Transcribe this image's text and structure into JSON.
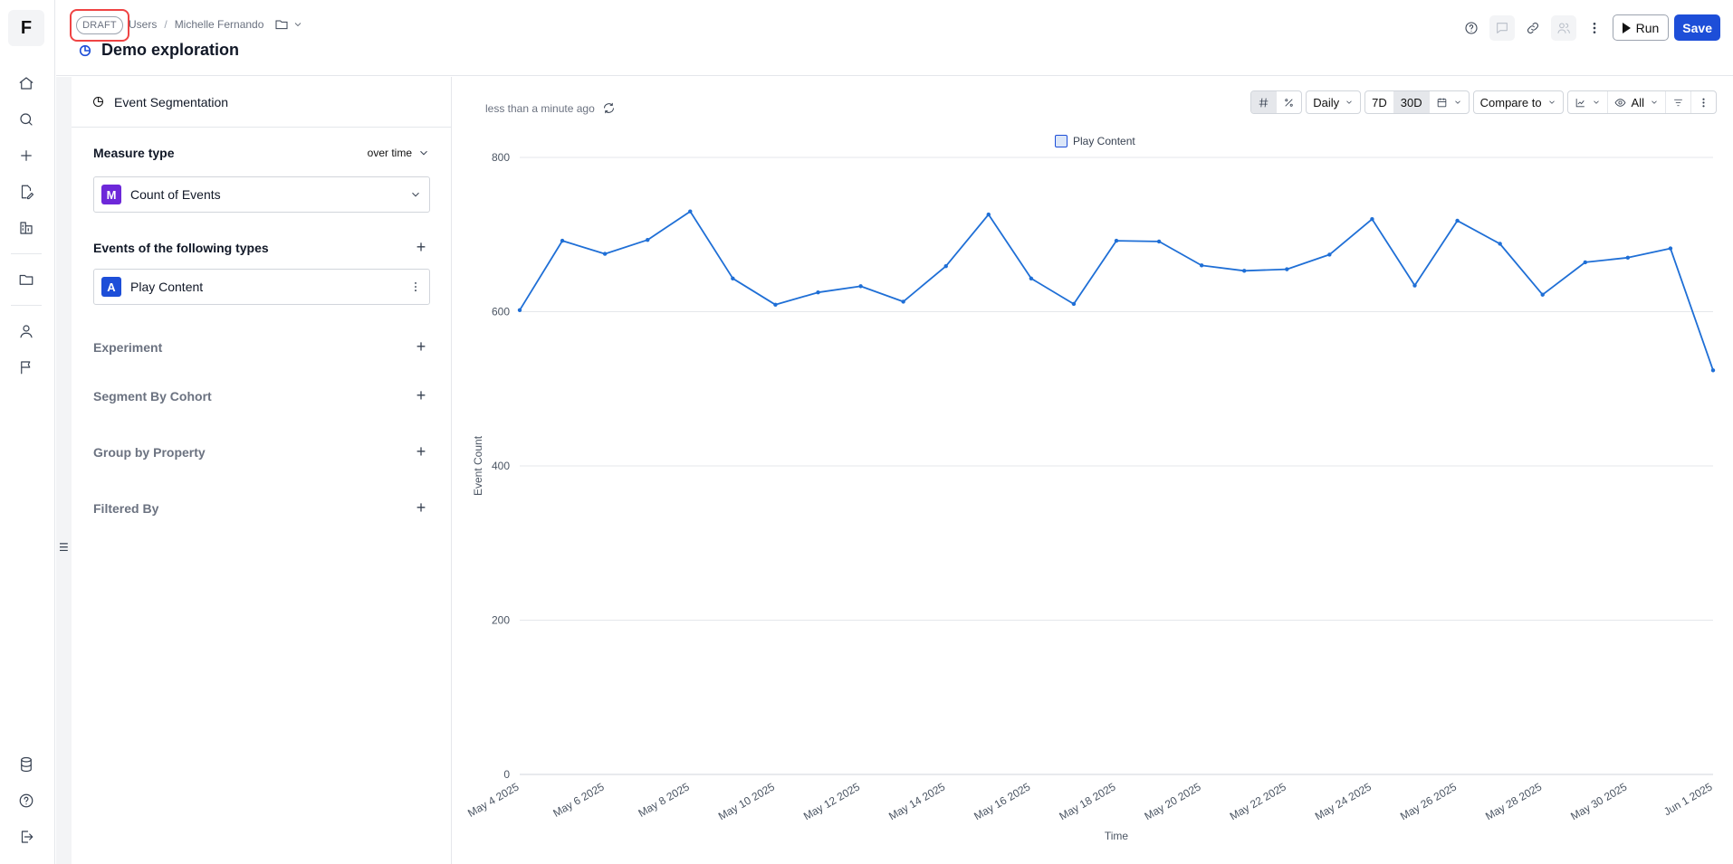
{
  "rail": {
    "logo": "F",
    "icons": [
      "home-icon",
      "search-icon",
      "plus-icon",
      "file-edit-icon",
      "report-icon",
      "folder-icon",
      "user-icon",
      "flag-icon",
      "database-icon",
      "help-icon",
      "logout-icon"
    ]
  },
  "header": {
    "draft_label": "DRAFT",
    "breadcrumb_users": "Users",
    "breadcrumb_sep": "/",
    "breadcrumb_owner": "Michelle Fernando",
    "title": "Demo exploration",
    "run_label": "Run",
    "save_label": "Save"
  },
  "panel": {
    "heading": "Event Segmentation",
    "measure_title": "Measure type",
    "measure_mode": "over time",
    "measure_badge": "M",
    "measure_value": "Count of Events",
    "events_title": "Events of the following types",
    "event_badge": "A",
    "event_value": "Play Content",
    "experiment": "Experiment",
    "segment": "Segment By Cohort",
    "group": "Group by Property",
    "filtered": "Filtered By"
  },
  "toolbar": {
    "updated": "less than a minute ago",
    "granularity": "Daily",
    "range_7d": "7D",
    "range_30d": "30D",
    "compare": "Compare to",
    "visibility": "All"
  },
  "colors": {
    "accent": "#1d4ed8",
    "line": "#1f6fd6",
    "highlight": "#ef4444"
  },
  "chart_data": {
    "type": "line",
    "title": "",
    "xlabel": "Time",
    "ylabel": "Event Count",
    "ylim": [
      0,
      800
    ],
    "yticks": [
      0,
      200,
      400,
      600,
      800
    ],
    "grid": true,
    "legend_position": "top-center",
    "x": [
      "May 4 2025",
      "May 5 2025",
      "May 6 2025",
      "May 7 2025",
      "May 8 2025",
      "May 9 2025",
      "May 10 2025",
      "May 11 2025",
      "May 12 2025",
      "May 13 2025",
      "May 14 2025",
      "May 15 2025",
      "May 16 2025",
      "May 17 2025",
      "May 18 2025",
      "May 19 2025",
      "May 20 2025",
      "May 21 2025",
      "May 22 2025",
      "May 23 2025",
      "May 24 2025",
      "May 25 2025",
      "May 26 2025",
      "May 27 2025",
      "May 28 2025",
      "May 29 2025",
      "May 30 2025",
      "May 31 2025",
      "Jun 1 2025"
    ],
    "x_tick_labels": [
      "May 4 2025",
      "May 6 2025",
      "May 8 2025",
      "May 10 2025",
      "May 12 2025",
      "May 14 2025",
      "May 16 2025",
      "May 18 2025",
      "May 20 2025",
      "May 22 2025",
      "May 24 2025",
      "May 26 2025",
      "May 28 2025",
      "May 30 2025",
      "Jun 1 2025"
    ],
    "series": [
      {
        "name": "Play Content",
        "values": [
          602,
          692,
          675,
          693,
          730,
          643,
          609,
          625,
          633,
          613,
          659,
          726,
          643,
          610,
          692,
          691,
          660,
          653,
          655,
          674,
          720,
          634,
          718,
          688,
          622,
          664,
          670,
          682,
          524
        ]
      }
    ]
  }
}
